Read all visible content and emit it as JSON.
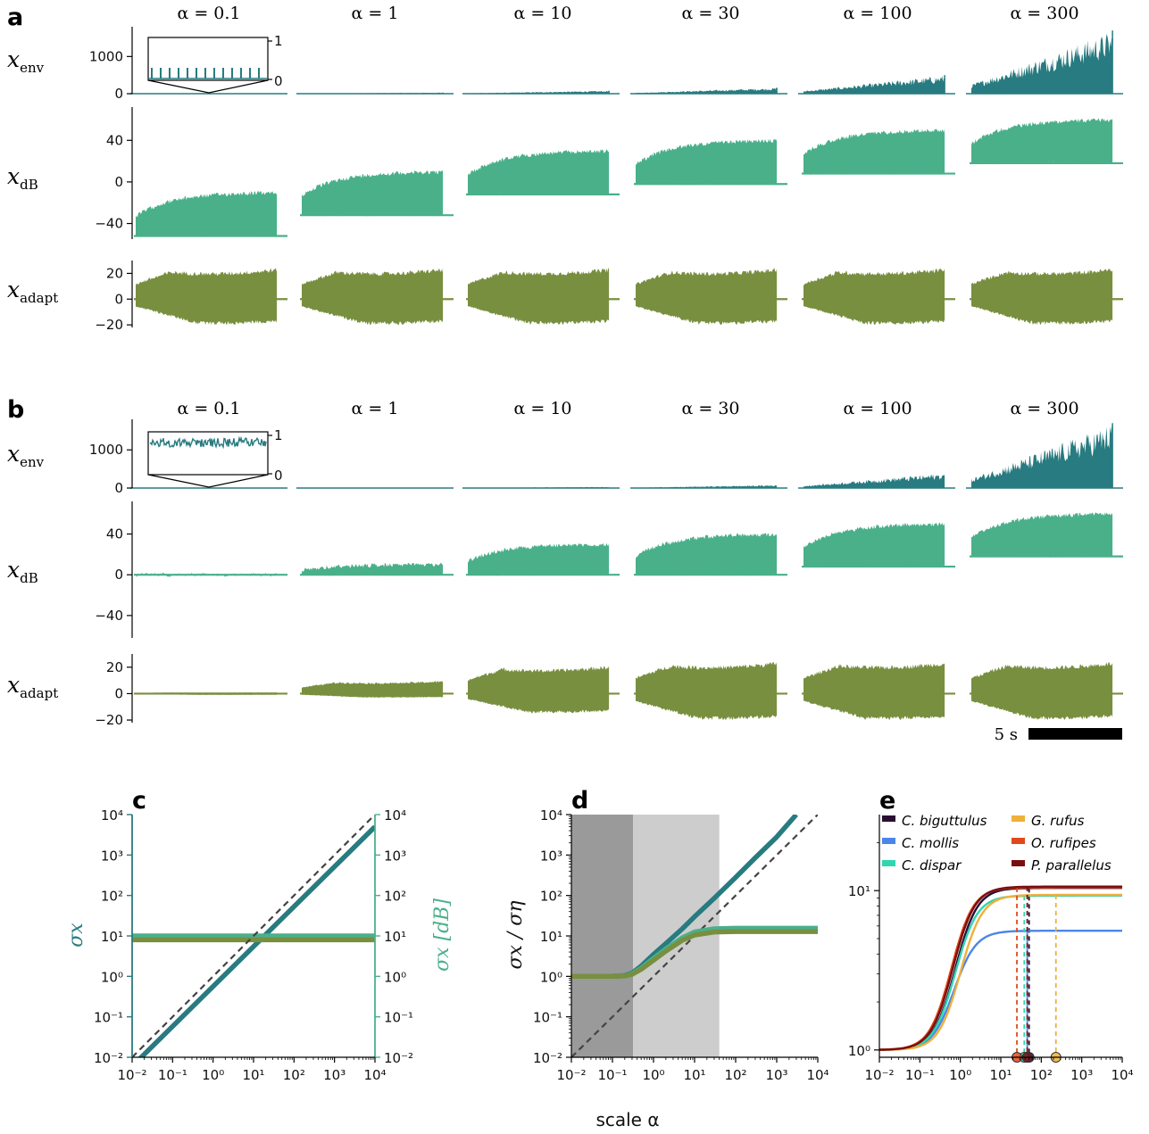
{
  "colors": {
    "env": "#287b80",
    "db": "#49b08a",
    "adapt": "#788f40",
    "dash": "#444444",
    "shade_dark": "#9a9a9a",
    "shade_light": "#cdcdcd"
  },
  "panels": {
    "a": {
      "letter": "a"
    },
    "b": {
      "letter": "b"
    },
    "c": {
      "letter": "c"
    },
    "d": {
      "letter": "d"
    },
    "e": {
      "letter": "e"
    }
  },
  "row_labels": {
    "env": {
      "base": "x",
      "sub": "env"
    },
    "db": {
      "base": "x",
      "sub": "dB"
    },
    "adapt": {
      "base": "x",
      "sub": "adapt"
    }
  },
  "alpha_titles": [
    "α = 0.1",
    "α = 1",
    "α = 10",
    "α = 30",
    "α = 100",
    "α = 300"
  ],
  "scale_bar": {
    "label": "5 s"
  },
  "x_axis_label": "scale α",
  "chart_data": [
    {
      "type": "line",
      "panel": "a",
      "columns": [
        "α = 0.1",
        "α = 1",
        "α = 10",
        "α = 30",
        "α = 100",
        "α = 300"
      ],
      "rows": [
        {
          "name": "x_env",
          "yticks": [
            0,
            1000
          ],
          "ylim": [
            0,
            1800
          ],
          "peak_by_column": [
            12,
            30,
            80,
            160,
            500,
            1700
          ],
          "inset": {
            "yticks": [
              0,
              1
            ]
          }
        },
        {
          "name": "x_dB",
          "yticks": [
            -40,
            0,
            40
          ],
          "ylim": [
            -55,
            72
          ],
          "baseline_by_column": [
            -52,
            -32,
            -12,
            -2,
            8,
            18
          ],
          "peak_by_column": [
            -8,
            12,
            32,
            42,
            52,
            62
          ]
        },
        {
          "name": "x_adapt",
          "yticks": [
            -20,
            0,
            20
          ],
          "ylim": [
            -22,
            30
          ],
          "upper": 25,
          "lower": -20
        }
      ]
    },
    {
      "type": "line",
      "panel": "b",
      "columns": [
        "α = 0.1",
        "α = 1",
        "α = 10",
        "α = 30",
        "α = 100",
        "α = 300"
      ],
      "rows": [
        {
          "name": "x_env",
          "yticks": [
            0,
            1000
          ],
          "ylim": [
            0,
            1800
          ],
          "peak_by_column": [
            5,
            12,
            30,
            80,
            400,
            1700
          ],
          "inset": {
            "yticks": [
              0,
              1
            ]
          }
        },
        {
          "name": "x_dB",
          "yticks": [
            -40,
            0,
            40
          ],
          "ylim": [
            -62,
            72
          ],
          "baseline_by_column": [
            0,
            0,
            0,
            0,
            8,
            18
          ],
          "peak_by_column": [
            2,
            12,
            32,
            42,
            52,
            62
          ]
        },
        {
          "name": "x_adapt",
          "yticks": [
            -20,
            0,
            20
          ],
          "ylim": [
            -22,
            30
          ],
          "upper_by_column": [
            1,
            10,
            22,
            25,
            25,
            25
          ],
          "lower_by_column": [
            -1,
            -3,
            -15,
            -20,
            -20,
            -20
          ]
        }
      ]
    },
    {
      "type": "line",
      "panel": "c",
      "x_scale": "log",
      "xlim": [
        0.01,
        10000
      ],
      "y_scale": "log",
      "ylim": [
        0.01,
        10000
      ],
      "xticks": [
        0.01,
        0.1,
        1,
        10,
        100,
        1000,
        10000
      ],
      "xtick_labels": [
        "10⁻²",
        "10⁻¹",
        "10⁰",
        "10¹",
        "10²",
        "10³",
        "10⁴"
      ],
      "yticks": [
        0.01,
        0.1,
        1,
        10,
        100,
        1000,
        10000
      ],
      "ytick_labels": [
        "10⁻²",
        "10⁻¹",
        "10⁰",
        "10¹",
        "10²",
        "10³",
        "10⁴"
      ],
      "ylabel_left": "σx",
      "ylabel_right": "σx [dB]",
      "series": [
        {
          "key": "env",
          "x": [
            0.01,
            10000
          ],
          "y": [
            0.006,
            5000
          ]
        },
        {
          "key": "db",
          "x": [
            0.01,
            10000
          ],
          "y": [
            10,
            10
          ]
        },
        {
          "key": "adapt",
          "x": [
            0.01,
            10000
          ],
          "y": [
            8,
            8
          ]
        },
        {
          "key": "identity",
          "dashed": true,
          "x": [
            0.01,
            10000
          ],
          "y": [
            0.01,
            10000
          ]
        }
      ]
    },
    {
      "type": "line",
      "panel": "d",
      "x_scale": "log",
      "xlim": [
        0.01,
        10000
      ],
      "y_scale": "log",
      "ylim": [
        0.01,
        10000
      ],
      "xticks": [
        0.01,
        0.1,
        1,
        10,
        100,
        1000,
        10000
      ],
      "xtick_labels": [
        "10⁻²",
        "10⁻¹",
        "10⁰",
        "10¹",
        "10²",
        "10³",
        "10⁴"
      ],
      "yticks": [
        0.01,
        0.1,
        1,
        10,
        100,
        1000,
        10000
      ],
      "ytick_labels": [
        "10⁻²",
        "10⁻¹",
        "10⁰",
        "10¹",
        "10²",
        "10³",
        "10⁴"
      ],
      "ylabel": "σx / ση",
      "shaded_regions": [
        {
          "from": 0.01,
          "to": 0.32,
          "tone": "dark"
        },
        {
          "from": 0.32,
          "to": 40,
          "tone": "light"
        }
      ],
      "series": [
        {
          "key": "env",
          "x": [
            0.01,
            0.1,
            0.2,
            0.3,
            0.5,
            1,
            2,
            5,
            10,
            30,
            100,
            300,
            1000,
            3000
          ],
          "y": [
            1,
            1,
            1.05,
            1.2,
            1.8,
            3.5,
            6.5,
            15,
            30,
            85,
            280,
            850,
            2800,
            10000
          ]
        },
        {
          "key": "db",
          "x": [
            0.01,
            0.1,
            0.2,
            0.3,
            0.5,
            1,
            2,
            5,
            10,
            30,
            100,
            10000
          ],
          "y": [
            1,
            1,
            1.03,
            1.15,
            1.6,
            2.8,
            4.8,
            9,
            12.5,
            15,
            15.5,
            15.5
          ]
        },
        {
          "key": "adapt",
          "x": [
            0.01,
            0.1,
            0.2,
            0.3,
            0.5,
            1,
            2,
            5,
            10,
            30,
            100,
            10000
          ],
          "y": [
            1,
            1,
            1.02,
            1.12,
            1.5,
            2.5,
            4.2,
            7.8,
            10.5,
            12.5,
            12.8,
            12.8
          ]
        },
        {
          "key": "identity",
          "dashed": true,
          "x": [
            0.01,
            10000
          ],
          "y": [
            0.01,
            10000
          ]
        }
      ]
    },
    {
      "type": "line",
      "panel": "e",
      "x_scale": "log",
      "xlim": [
        0.01,
        10000
      ],
      "y_scale": "log",
      "ylim": [
        0.9,
        30
      ],
      "xticks": [
        0.01,
        0.1,
        1,
        10,
        100,
        1000,
        10000
      ],
      "xtick_labels": [
        "10⁻²",
        "10⁻¹",
        "10⁰",
        "10¹",
        "10²",
        "10³",
        "10⁴"
      ],
      "yticks": [
        1,
        10
      ],
      "ytick_labels": [
        "10⁰",
        "10¹"
      ],
      "legend_position": "top",
      "series": [
        {
          "name": "C. biguttulus",
          "color": "#2a0f33",
          "plateau": 10.4,
          "midpoint": 0.75,
          "marker_x": 50
        },
        {
          "name": "C. mollis",
          "color": "#4a86e8",
          "plateau": 5.6,
          "midpoint": 0.7,
          "marker_x": 45
        },
        {
          "name": "C. dispar",
          "color": "#2fd6b0",
          "plateau": 9.3,
          "midpoint": 0.75,
          "marker_x": 38
        },
        {
          "name": "G. rufus",
          "color": "#f0b03a",
          "plateau": 9.4,
          "midpoint": 1.0,
          "marker_x": 230
        },
        {
          "name": "O. rufipes",
          "color": "#e0491a",
          "plateau": 10.5,
          "midpoint": 0.6,
          "marker_x": 25
        },
        {
          "name": "P. parallelus",
          "color": "#7a0d0d",
          "plateau": 10.6,
          "midpoint": 0.65,
          "marker_x": 45
        }
      ]
    }
  ]
}
